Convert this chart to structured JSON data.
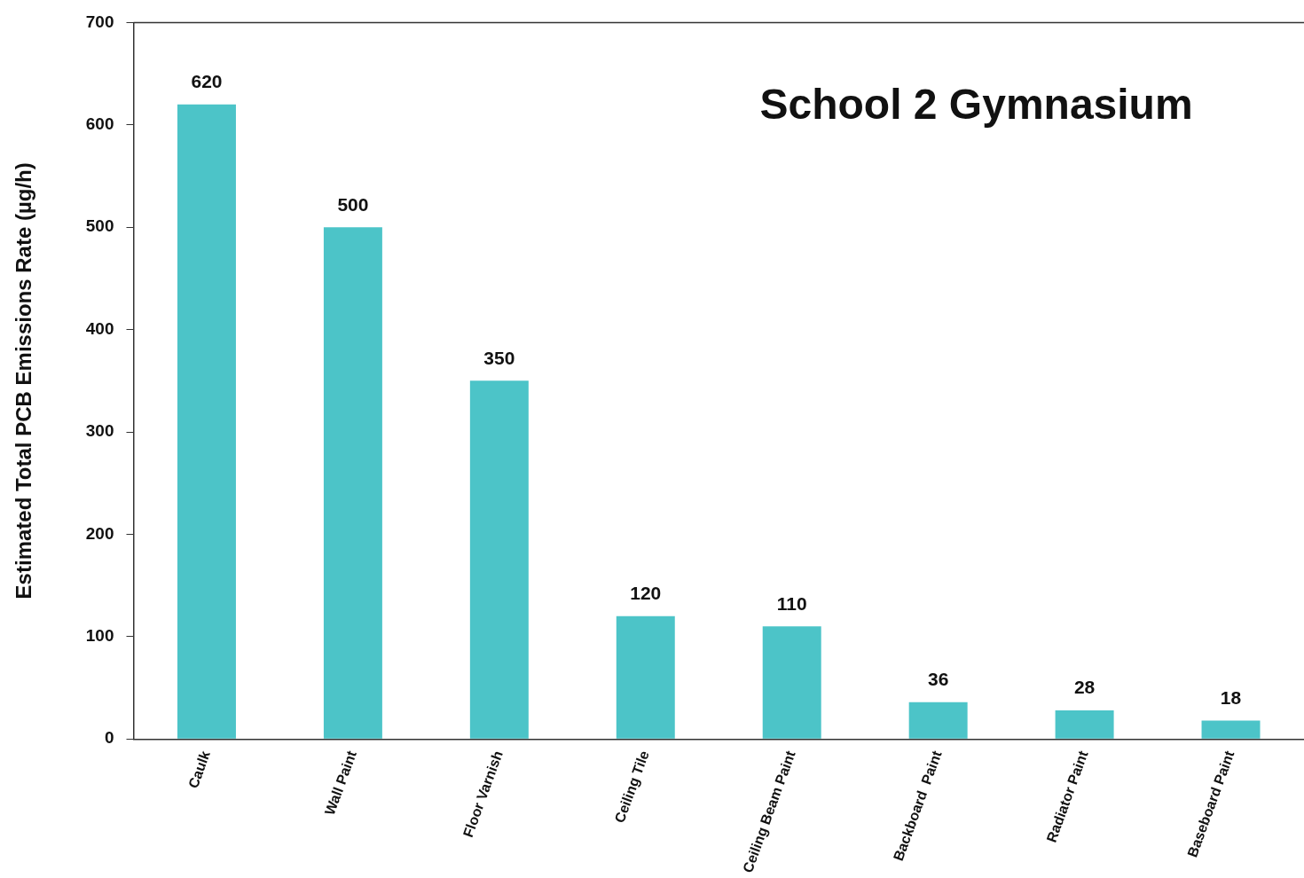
{
  "chart_data": {
    "type": "bar",
    "title": "School 2 Gymnasium",
    "ylabel": "Estimated Total PCB Emissions Rate (µg/h)",
    "categories": [
      "Caulk",
      "Wall Paint",
      "Floor Varnish",
      "Ceiling Tile",
      "Ceiling Beam Paint",
      "Backboard  Paint",
      "Radiator Paint",
      "Baseboard Paint"
    ],
    "values": [
      620,
      500,
      350,
      120,
      110,
      36,
      28,
      18
    ],
    "color": "#4cc4c8",
    "ylim": [
      0,
      700
    ],
    "yticks": [
      0,
      100,
      200,
      300,
      400,
      500,
      600,
      700
    ],
    "grid": false,
    "legend": false,
    "data_labels": true
  }
}
